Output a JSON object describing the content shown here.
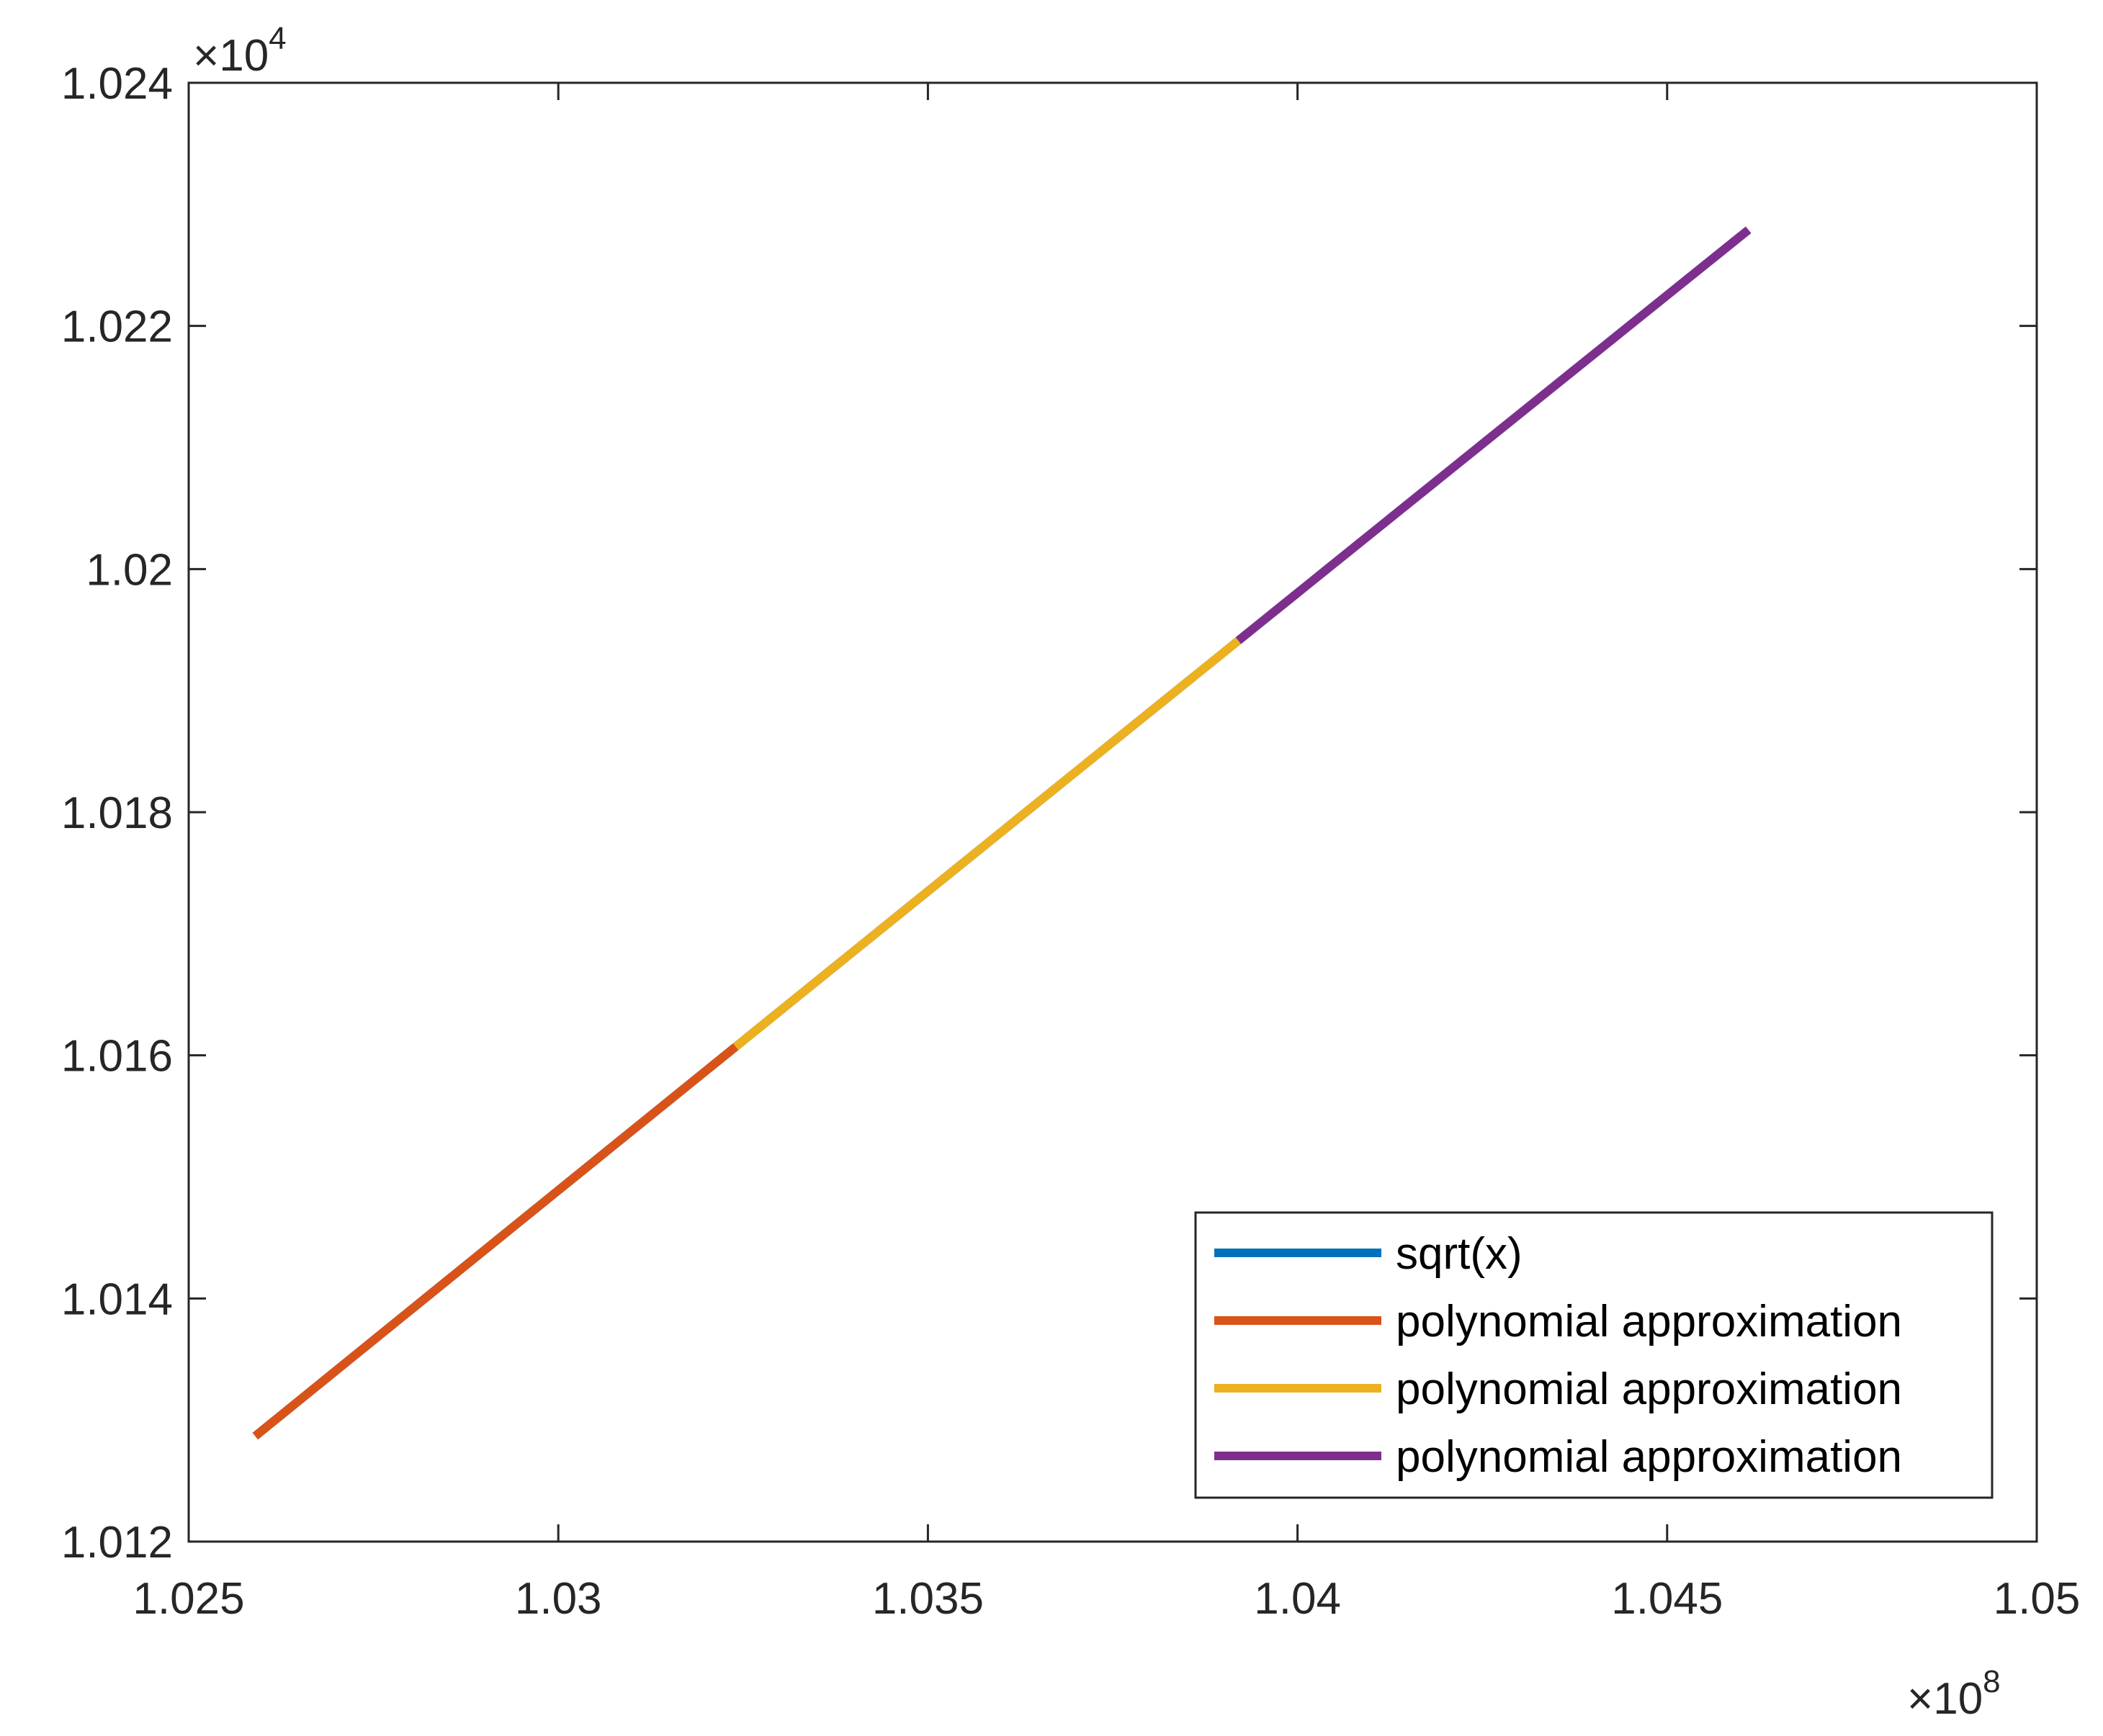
{
  "chart_data": {
    "type": "line",
    "xlim": [
      1.025,
      1.05
    ],
    "ylim": [
      1.012,
      1.024
    ],
    "x_exponent_label": {
      "base": "×10",
      "power": "8"
    },
    "y_exponent_label": {
      "base": "×10",
      "power": "4"
    },
    "x_ticks": [
      "1.025",
      "1.03",
      "1.035",
      "1.04",
      "1.045",
      "1.05"
    ],
    "x_tick_values": [
      1.025,
      1.03,
      1.035,
      1.04,
      1.045,
      1.05
    ],
    "y_ticks": [
      "1.012",
      "1.014",
      "1.016",
      "1.018",
      "1.02",
      "1.022",
      "1.024"
    ],
    "y_tick_values": [
      1.012,
      1.014,
      1.016,
      1.018,
      1.02,
      1.022,
      1.024
    ],
    "grid": false,
    "legend_position": "bottom-right",
    "series": [
      {
        "name": "sqrt(x)",
        "color": "#0072BD",
        "x": [
          1.0259,
          1.0461
        ]
      },
      {
        "name": "polynomial approximation",
        "color": "#D95319",
        "x": [
          1.0259,
          1.0324
        ]
      },
      {
        "name": "polynomial approximation",
        "color": "#EDB120",
        "x": [
          1.0324,
          1.0392
        ]
      },
      {
        "name": "polynomial approximation",
        "color": "#7E2F8E",
        "x": [
          1.0392,
          1.0461
        ]
      }
    ]
  }
}
